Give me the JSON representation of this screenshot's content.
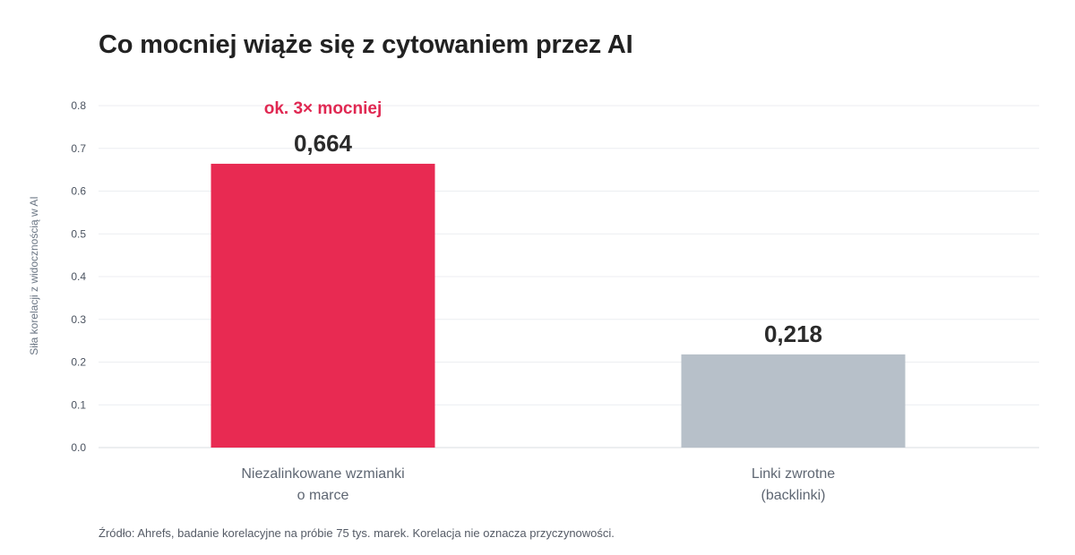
{
  "chart_data": {
    "type": "bar",
    "title": "Co mocniej wiąże się z cytowaniem przez AI",
    "ylabel": "Siła korelacji z widocznością w AI",
    "xlabel": "",
    "ylim": [
      0,
      0.8
    ],
    "yticks": [
      "0.0",
      "0.1",
      "0.2",
      "0.3",
      "0.4",
      "0.5",
      "0.6",
      "0.7",
      "0.8"
    ],
    "grid": true,
    "categories": [
      [
        "Niezalinkowane wzmianki",
        "o marce"
      ],
      [
        "Linki zwrotne",
        "(backlinki)"
      ]
    ],
    "values": [
      0.664,
      0.218
    ],
    "value_labels": [
      "0,664",
      "0,218"
    ],
    "colors": [
      "#e82a52",
      "#b7c0c9"
    ],
    "annotation": {
      "text": "ok. 3× mocniej",
      "bar_index": 0,
      "color": "#e02852"
    },
    "source": "Źródło: Ahrefs, badanie korelacyjne na próbie 75 tys. marek. Korelacja nie oznacza przyczynowości."
  }
}
